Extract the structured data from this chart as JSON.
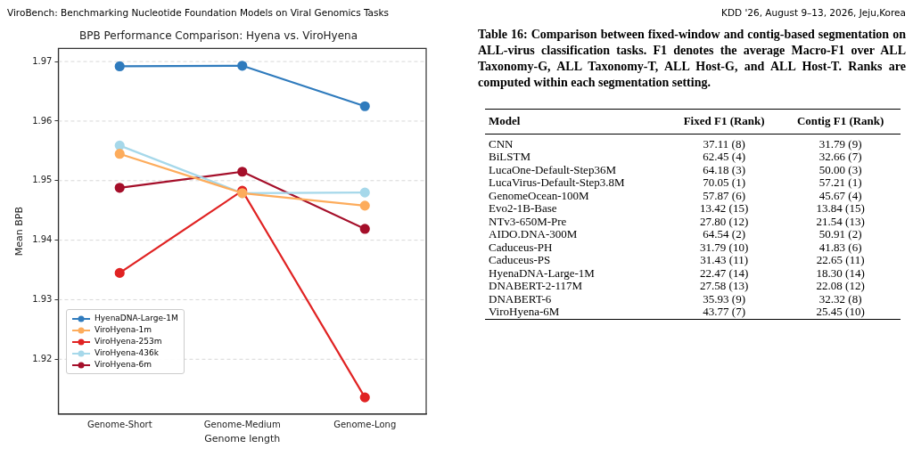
{
  "chart_data": [
    {
      "type": "line",
      "title": "BPB Performance Comparison: Hyena vs. ViroHyena",
      "xlabel": "Genome length",
      "ylabel": "Mean BPB",
      "categories": [
        "Genome-Short",
        "Genome-Medium",
        "Genome-Long"
      ],
      "series": [
        {
          "name": "HyenaDNA-Large-1M",
          "color": "#2f7bbd",
          "values": [
            1.9692,
            1.9693,
            1.9625
          ]
        },
        {
          "name": "ViroHyena-1m",
          "color": "#fdac5c",
          "values": [
            1.9545,
            1.9479,
            1.9458
          ]
        },
        {
          "name": "ViroHyena-253m",
          "color": "#e02323",
          "values": [
            1.9345,
            1.9483,
            1.9136
          ]
        },
        {
          "name": "ViroHyena-436k",
          "color": "#a6d8ea",
          "values": [
            1.9559,
            1.9479,
            1.948
          ]
        },
        {
          "name": "ViroHyena-6m",
          "color": "#a50f2a",
          "values": [
            1.9488,
            1.9515,
            1.9419
          ]
        }
      ],
      "ylim": [
        1.9108,
        1.9722
      ],
      "yticks": [
        1.92,
        1.93,
        1.94,
        1.95,
        1.96,
        1.97
      ],
      "grid": "y",
      "legend": "bottom left",
      "marker": "circle",
      "line_style": "solid",
      "annotations": [
        "ViroBench: Benchmarking Nucleotide Foundation Models on Viral Genomics Tasks",
        "KDD '26, August 9–13, 2026, Jeju,Korea"
      ]
    },
    {
      "type": "other",
      "title": "Table 16: Comparison between fixed-window and contig-based segmentation on ALL-virus classification tasks. F1 denotes the average Macro-F1 over ALL Taxonomy-G, ALL Taxonomy-T, ALL Host-G, and ALL Host-T. Ranks are computed within each segmentation setting.",
      "categories": [
        "Model",
        "Fixed F1 (Rank)",
        "Contig F1 (Rank)"
      ],
      "annotations": [
        "CNN",
        "37.11 (8)",
        "31.79 (9)",
        "BiLSTM",
        "62.45 (4)",
        "32.66 (7)",
        "LucaOne-Default-Step36M",
        "64.18 (3)",
        "50.00 (3)",
        "LucaVirus-Default-Step3.8M",
        "70.05 (1)",
        "57.21 (1)",
        "GenomeOcean-100M",
        "57.87 (6)",
        "45.67 (4)",
        "Evo2-1B-Base",
        "13.42 (15)",
        "13.84 (15)",
        "NTv3-650M-Pre",
        "27.80 (12)",
        "21.54 (13)",
        "AIDO.DNA-300M",
        "64.54 (2)",
        "50.91 (2)",
        "Caduceus-PH",
        "31.79 (10)",
        "41.83 (6)",
        "Caduceus-PS",
        "31.43 (11)",
        "22.65 (11)",
        "HyenaDNA-Large-1M",
        "22.47 (14)",
        "18.30 (14)",
        "DNABERT-2-117M",
        "27.58 (13)",
        "22.08 (12)",
        "DNABERT-6",
        "35.93 (9)",
        "32.32 (8)",
        "ViroHyena-6M",
        "43.77 (7)",
        "25.45 (10)"
      ]
    }
  ]
}
